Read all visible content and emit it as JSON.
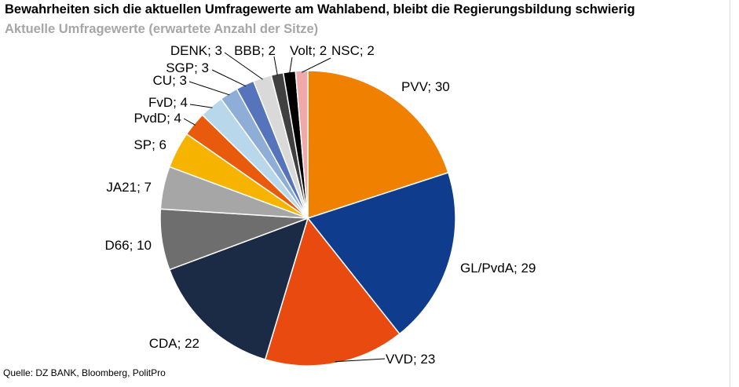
{
  "header": {
    "title": "Bewahrheiten sich die aktuellen Umfragewerte am Wahlabend, bleibt die Regierungsbildung schwierig",
    "subtitle": "Aktuelle Umfragewerte (erwartete Anzahl der Sitze)"
  },
  "footer": {
    "source": "Quelle: DZ BANK, Bloomberg, PolitPro"
  },
  "chart_data": {
    "type": "pie",
    "title": "Bewahrheiten sich die aktuellen Umfragewerte am Wahlabend, bleibt die Regierungsbildung schwierig",
    "subtitle": "Aktuelle Umfragewerte (erwartete Anzahl der Sitze)",
    "slices": [
      {
        "name": "PVV",
        "value": 30,
        "label": "PVV; 30",
        "color": "#f08000"
      },
      {
        "name": "GL/PvdA",
        "value": 29,
        "label": "GL/PvdA; 29",
        "color": "#0f3c8c"
      },
      {
        "name": "VVD",
        "value": 23,
        "label": "VVD; 23",
        "color": "#e84a10"
      },
      {
        "name": "CDA",
        "value": 22,
        "label": "CDA; 22",
        "color": "#1b2a45"
      },
      {
        "name": "D66",
        "value": 10,
        "label": "D66; 10",
        "color": "#6e6e6e"
      },
      {
        "name": "JA21",
        "value": 7,
        "label": "JA21; 7",
        "color": "#a6a6a6"
      },
      {
        "name": "SP",
        "value": 6,
        "label": "SP; 6",
        "color": "#f6b400"
      },
      {
        "name": "PvdD",
        "value": 4,
        "label": "PvdD; 4",
        "color": "#e85a0c"
      },
      {
        "name": "FvD",
        "value": 4,
        "label": "FvD; 4",
        "color": "#b9d7ea"
      },
      {
        "name": "CU",
        "value": 3,
        "label": "CU; 3",
        "color": "#8eaed8"
      },
      {
        "name": "SGP",
        "value": 3,
        "label": "SGP; 3",
        "color": "#5574bb"
      },
      {
        "name": "DENK",
        "value": 3,
        "label": "DENK; 3",
        "color": "#d9d9d9"
      },
      {
        "name": "BBB",
        "value": 2,
        "label": "BBB; 2",
        "color": "#404040"
      },
      {
        "name": "Volt",
        "value": 2,
        "label": "Volt; 2",
        "color": "#000000"
      },
      {
        "name": "NSC",
        "value": 2,
        "label": "NSC; 2",
        "color": "#f0a8a8"
      }
    ],
    "start": "12 o'clock",
    "direction": "clockwise",
    "legend": "none"
  }
}
